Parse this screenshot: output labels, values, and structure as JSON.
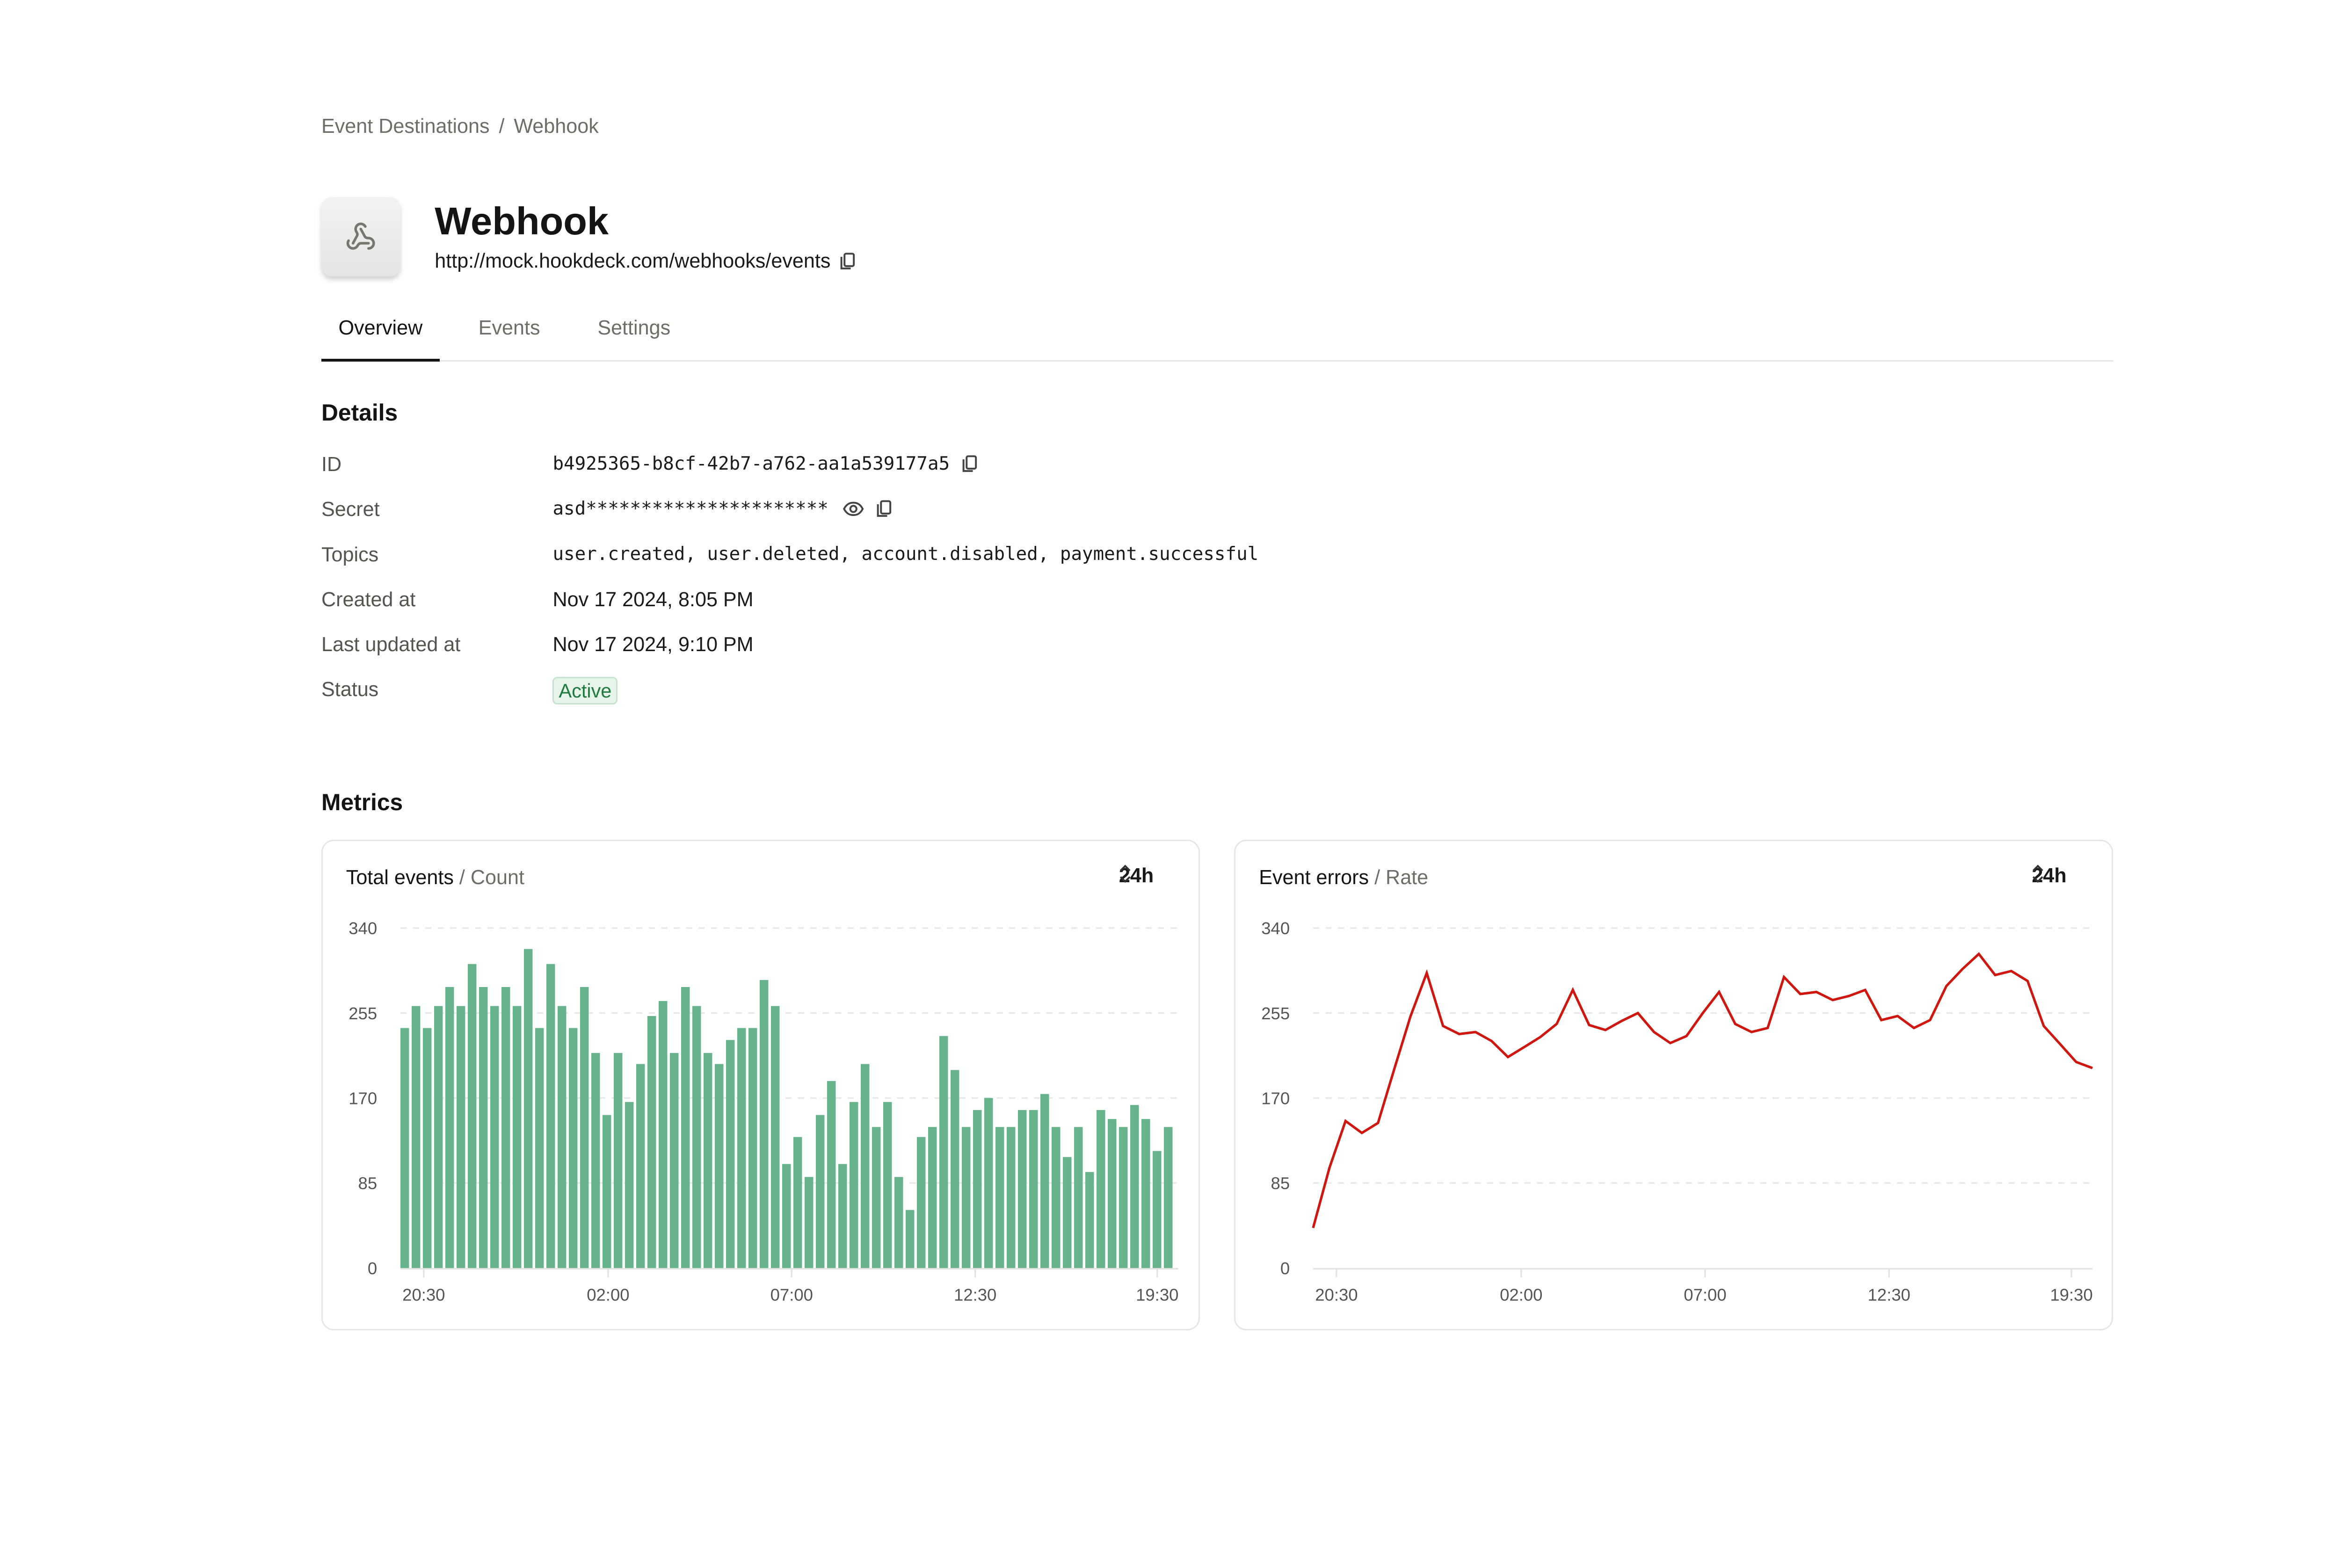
{
  "breadcrumb": {
    "items": [
      "Event Destinations",
      "Webhook"
    ],
    "separator": "/"
  },
  "header": {
    "title": "Webhook",
    "url": "http://mock.hookdeck.com/webhooks/events",
    "icon": "webhook-icon"
  },
  "tabs": [
    {
      "label": "Overview",
      "active": true
    },
    {
      "label": "Events",
      "active": false
    },
    {
      "label": "Settings",
      "active": false
    }
  ],
  "details": {
    "heading": "Details",
    "rows": [
      {
        "label": "ID",
        "value": "b4925365-b8cf-42b7-a762-aa1a539177a5"
      },
      {
        "label": "Secret",
        "value": "asd**********************"
      },
      {
        "label": "Topics",
        "value": "user.created, user.deleted, account.disabled, payment.successful"
      },
      {
        "label": "Created at",
        "value": "Nov 17 2024, 8:05 PM"
      },
      {
        "label": "Last updated at",
        "value": "Nov 17 2024, 9:10 PM"
      },
      {
        "label": "Status",
        "value": "Active"
      }
    ]
  },
  "metrics": {
    "heading": "Metrics"
  },
  "colors": {
    "bar": "#67b38b",
    "line": "#d0170f",
    "badge_text": "#1f7a3e"
  },
  "chart_data": [
    {
      "type": "bar",
      "title": "Total events",
      "subtitle": "Count",
      "range": "24h",
      "ylim": [
        0,
        340
      ],
      "yticks": [
        0,
        85,
        170,
        255,
        340
      ],
      "xticks": [
        "20:30",
        "02:00",
        "07:00",
        "12:30",
        "19:30"
      ],
      "grid": true,
      "values": [
        240,
        262,
        240,
        262,
        281,
        262,
        304,
        281,
        262,
        281,
        262,
        319,
        240,
        304,
        262,
        240,
        281,
        215,
        153,
        215,
        166,
        204,
        252,
        267,
        215,
        281,
        262,
        215,
        204,
        228,
        240,
        240,
        288,
        262,
        104,
        131,
        91,
        153,
        187,
        104,
        166,
        204,
        141,
        166,
        91,
        58,
        131,
        141,
        232,
        198,
        141,
        158,
        170,
        141,
        141,
        158,
        158,
        174,
        141,
        111,
        141,
        96,
        158,
        149,
        141,
        163,
        149,
        117,
        141
      ]
    },
    {
      "type": "line",
      "title": "Event errors",
      "subtitle": "Rate",
      "range": "24h",
      "ylim": [
        0,
        340
      ],
      "yticks": [
        0,
        85,
        170,
        255,
        340
      ],
      "xticks": [
        "20:30",
        "02:00",
        "07:00",
        "12:30",
        "19:30"
      ],
      "grid": true,
      "values": [
        40,
        100,
        147,
        135,
        145,
        199,
        252,
        295,
        242,
        234,
        236,
        227,
        211,
        221,
        231,
        244,
        278,
        243,
        238,
        247,
        255,
        236,
        225,
        232,
        255,
        276,
        244,
        236,
        240,
        291,
        274,
        276,
        268,
        272,
        278,
        248,
        252,
        240,
        248,
        282,
        299,
        314,
        293,
        297,
        287,
        242,
        224,
        206,
        200
      ]
    }
  ]
}
